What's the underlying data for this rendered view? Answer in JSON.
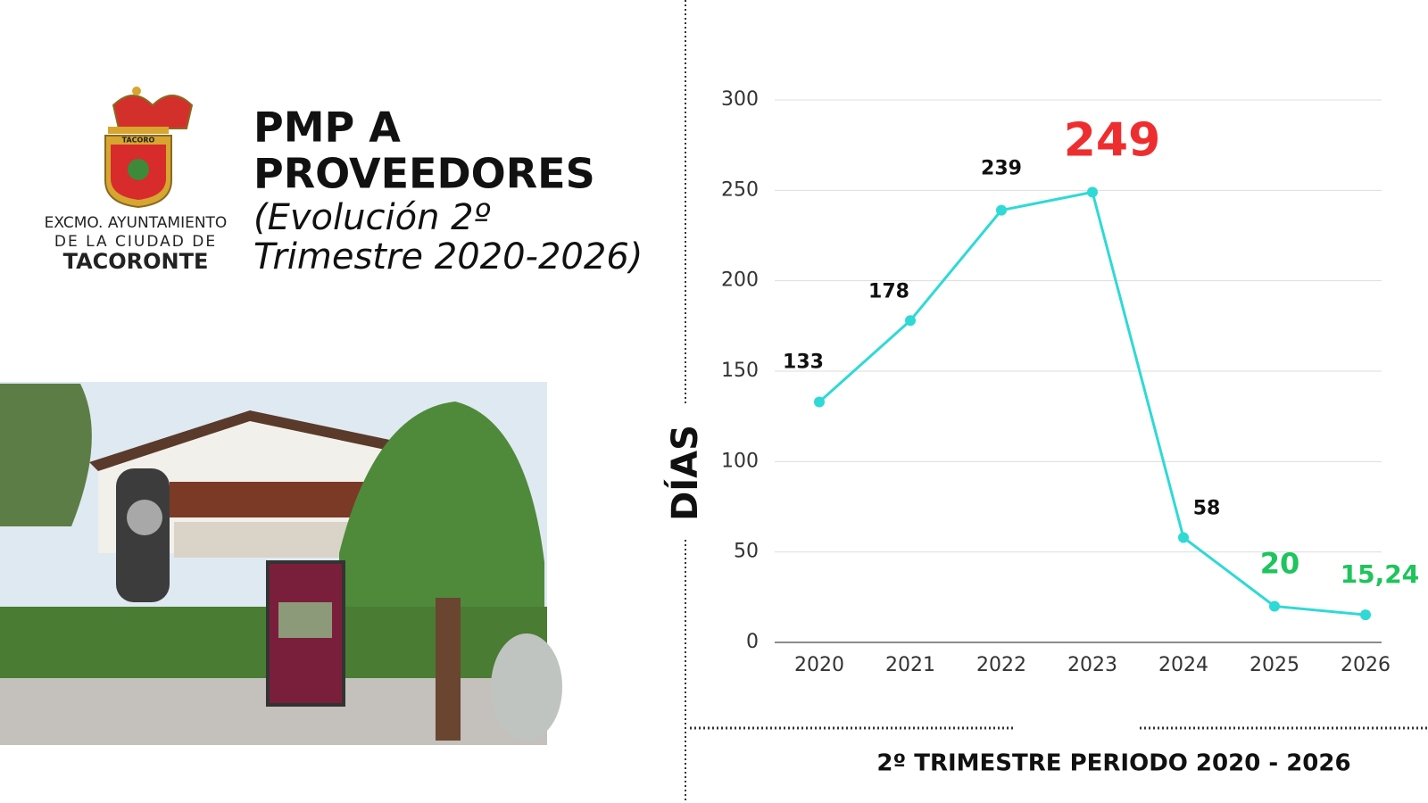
{
  "header": {
    "logo_lines": [
      "EXCMO. AYUNTAMIENTO",
      "DE LA CIUDAD DE",
      "TACORONTE"
    ],
    "shield_text": "TACORO",
    "title_lines": [
      "PMP A",
      "PROVEEDORES"
    ],
    "subtitle_lines": [
      "(Evolución 2º",
      "Trimestre 2020-2026)"
    ]
  },
  "chart_data": {
    "type": "line",
    "y_label": "DÍAS",
    "x_label": "2º TRIMESTRE PERIODO 2020 - 2026",
    "categories": [
      "2020",
      "2021",
      "2022",
      "2023",
      "2024",
      "2025",
      "2026"
    ],
    "series": [
      {
        "color": "#2fd9d6",
        "values": [
          133,
          178,
          239,
          249,
          58,
          20,
          15.24
        ],
        "value_labels": [
          "133",
          "178",
          "239",
          "249",
          "58",
          "20",
          "15,24"
        ],
        "value_label_colors": [
          "#111111",
          "#111111",
          "#111111",
          "#ee2e2e",
          "#111111",
          "#1ec45c",
          "#1ec45c"
        ]
      }
    ],
    "ylim": [
      0,
      300
    ],
    "yticks": [
      0,
      50,
      100,
      150,
      200,
      250,
      300
    ],
    "grid": true
  }
}
